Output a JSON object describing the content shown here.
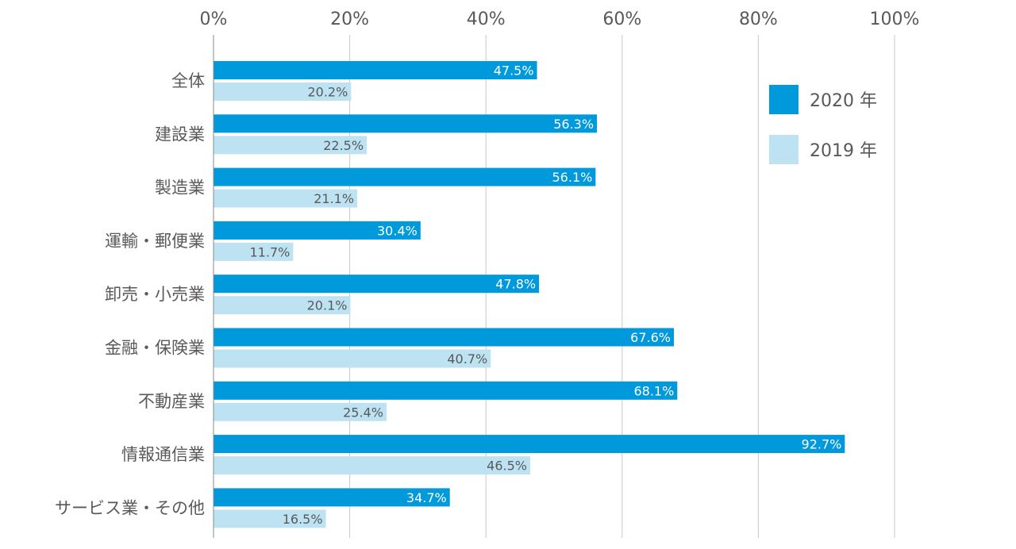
{
  "chart_data": {
    "type": "bar",
    "orientation": "horizontal",
    "categories": [
      "全体",
      "建設業",
      "製造業",
      "運輸・郵便業",
      "卸売・小売業",
      "金融・保険業",
      "不動産業",
      "情報通信業",
      "サービス業・その他"
    ],
    "series": [
      {
        "name": "2020 年",
        "color": "#0099dc",
        "values": [
          47.5,
          56.3,
          56.1,
          30.4,
          47.8,
          67.6,
          68.1,
          92.7,
          34.7
        ]
      },
      {
        "name": "2019 年",
        "color": "#bde3f3",
        "values": [
          20.2,
          22.5,
          21.1,
          11.7,
          20.1,
          40.7,
          25.4,
          46.5,
          16.5
        ]
      }
    ],
    "xlim": [
      0,
      100
    ],
    "xticks": [
      "0%",
      "20%",
      "40%",
      "60%",
      "80%",
      "100%"
    ],
    "value_suffix": "%",
    "grid": true,
    "legend_position": "top-right"
  }
}
